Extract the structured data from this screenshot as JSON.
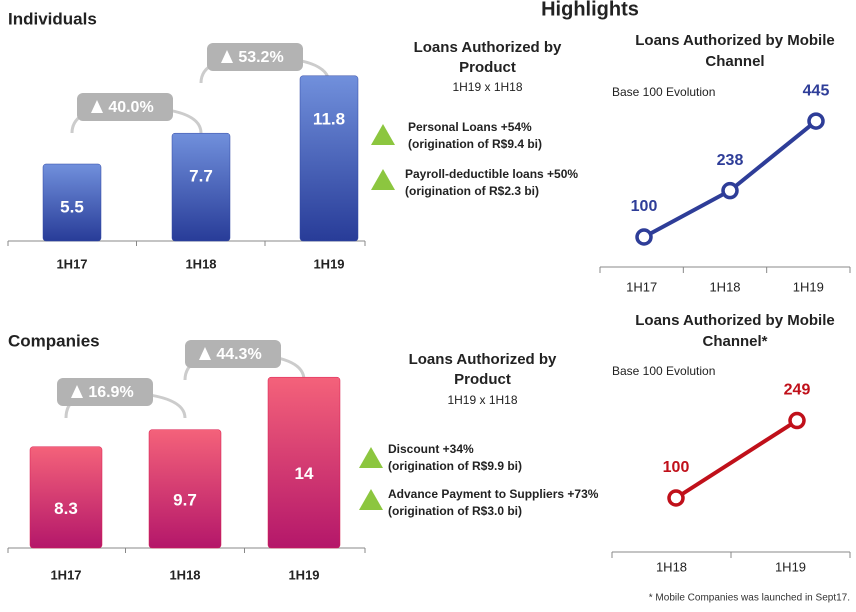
{
  "title": "Highlights",
  "chart_data": [
    {
      "type": "bar",
      "title": "Individuals",
      "categories": [
        "1H17",
        "1H18",
        "1H19"
      ],
      "values": [
        5.5,
        7.7,
        11.8
      ],
      "color": "#2f46a3",
      "growth": [
        "40.0%",
        "53.2%"
      ]
    },
    {
      "type": "line",
      "title": "Loans Authorized by Mobile Channel",
      "subtitle": "Base 100 Evolution",
      "categories": [
        "1H17",
        "1H18",
        "1H19"
      ],
      "values": [
        100,
        238,
        445
      ],
      "color": "#2e3d98"
    },
    {
      "type": "bar",
      "title": "Companies",
      "categories": [
        "1H17",
        "1H18",
        "1H19"
      ],
      "values": [
        8.3,
        9.7,
        14.0
      ],
      "color": "#d81b4f",
      "growth": [
        "16.9%",
        "44.3%"
      ]
    },
    {
      "type": "line",
      "title": "Loans Authorized by Mobile Channel*",
      "subtitle": "Base 100 Evolution",
      "categories": [
        "1H18",
        "1H19"
      ],
      "values": [
        100,
        249
      ],
      "color": "#c0101a"
    }
  ],
  "products": [
    {
      "title": "Loans Authorized by Product",
      "subtitle": "1H19 x 1H18",
      "items": [
        {
          "text": "Personal Loans +54%",
          "detail": "(origination of R$9.4 bi)"
        },
        {
          "text": "Payroll-deductible loans +50%",
          "detail": "(origination of R$2.3 bi)"
        }
      ]
    },
    {
      "title": "Loans Authorized by Product",
      "subtitle": "1H19 x 1H18",
      "items": [
        {
          "text": "Discount +34%",
          "detail": "(origination of R$9.9 bi)"
        },
        {
          "text": "Advance Payment to Suppliers +73%",
          "detail": "(origination of R$3.0 bi)"
        }
      ]
    }
  ],
  "footnote": "* Mobile Companies was launched in Sept17."
}
